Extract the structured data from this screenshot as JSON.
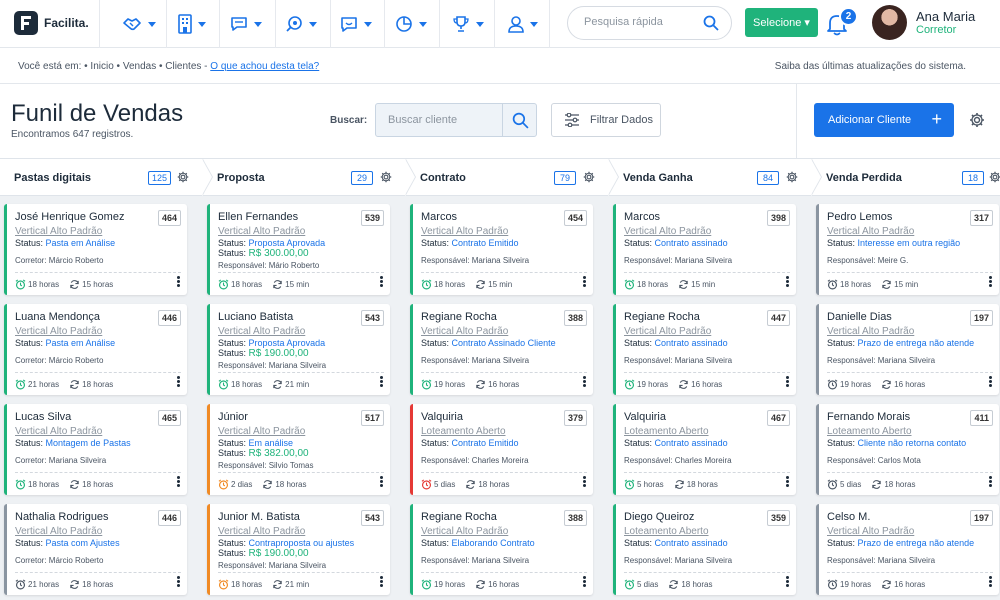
{
  "brand": {
    "name": "Facilita."
  },
  "topbar": {
    "search_placeholder": "Pesquisa rápida",
    "select_label": "Selecione ▾",
    "notifications": "2",
    "user_name": "Ana Maria",
    "user_role": "Corretor"
  },
  "breadcrumb": {
    "prefix": "Você está em:  • Inicio  • Vendas  • Clientes - ",
    "link": "O que achou desta tela?",
    "updates": "Saiba das últimas atualizações do sistema."
  },
  "header": {
    "title": "Funil de Vendas",
    "subtitle": "Encontramos 647 registros.",
    "search_label": "Buscar:",
    "search_placeholder": "Buscar cliente",
    "filter_label": "Filtrar Dados",
    "add_label": "Adicionar Cliente",
    "add_plus": "+"
  },
  "columns": [
    {
      "title": "Pastas digitais",
      "count": "125",
      "cards": [
        {
          "name": "José Henrique Gomez",
          "num": "464",
          "cat": "Vertical Alto Padrão",
          "status_label": "Status:",
          "status": "Pasta em Análise",
          "value_label": "",
          "value": "",
          "resp": "Corretor: Márcio Roberto",
          "t1": "18 horas",
          "t2": "15 horas",
          "color": "green"
        },
        {
          "name": "Luana Mendonça",
          "num": "446",
          "cat": "Vertical Alto Padrão",
          "status_label": "Status:",
          "status": "Pasta em Análise",
          "value_label": "",
          "value": "",
          "resp": "Corretor: Márcio Roberto",
          "t1": "21 horas",
          "t2": "18 horas",
          "color": "green"
        },
        {
          "name": "Lucas Silva",
          "num": "465",
          "cat": "Vertical Alto Padrão",
          "status_label": "Status:",
          "status": "Montagem de Pastas",
          "value_label": "",
          "value": "",
          "resp": "Corretor: Mariana Silveira",
          "t1": "18 horas",
          "t2": "18 horas",
          "color": "green"
        },
        {
          "name": "Nathalia Rodrigues",
          "num": "446",
          "cat": "Vertical Alto Padrão",
          "status_label": "Status:",
          "status": "Pasta com Ajustes",
          "value_label": "",
          "value": "",
          "resp": "Corretor: Márcio Roberto",
          "t1": "21 horas",
          "t2": "18 horas",
          "color": "gray"
        }
      ]
    },
    {
      "title": "Proposta",
      "count": "29",
      "cards": [
        {
          "name": "Ellen Fernandes",
          "num": "539",
          "cat": "Vertical Alto Padrão",
          "status_label": "Status:",
          "status": "Proposta Aprovada",
          "value_label": "Status:",
          "value": "R$ 300.00,00",
          "resp": "Responsável: Mário Roberto",
          "t1": "18 horas",
          "t2": "15 min",
          "color": "green"
        },
        {
          "name": "Luciano Batista",
          "num": "543",
          "cat": "Vertical Alto Padrão",
          "status_label": "Status:",
          "status": "Proposta Aprovada",
          "value_label": "Status:",
          "value": "R$ 190.00,00",
          "resp": "Responsável: Mariana Silveira",
          "t1": "18 horas",
          "t2": "21 min",
          "color": "green"
        },
        {
          "name": "Júnior",
          "num": "517",
          "cat": "Vertical Alto Padrão",
          "status_label": "Status:",
          "status": "Em análise",
          "value_label": "Status:",
          "value": "R$ 382.00,00",
          "resp": "Responsável: Silvio Tomas",
          "t1": "2 dias",
          "t2": "18 horas",
          "color": "orange"
        },
        {
          "name": "Junior M. Batista",
          "num": "543",
          "cat": "Vertical Alto Padrão",
          "status_label": "Status:",
          "status": "Contraproposta ou ajustes",
          "value_label": "Status:",
          "value": "R$ 190.00,00",
          "resp": "Responsável: Mariana Silveira",
          "t1": "18 horas",
          "t2": "21 min",
          "color": "orange"
        }
      ]
    },
    {
      "title": "Contrato",
      "count": "79",
      "cards": [
        {
          "name": "Marcos",
          "num": "454",
          "cat": "Vertical Alto Padrão",
          "status_label": "Status:",
          "status": "Contrato Emitido",
          "value_label": "",
          "value": "",
          "resp": "Responsável: Mariana Silveira",
          "t1": "18 horas",
          "t2": "15 min",
          "color": "green"
        },
        {
          "name": "Regiane Rocha",
          "num": "388",
          "cat": "Vertical Alto Padrão",
          "status_label": "Status:",
          "status": "Contrato Assinado Cliente",
          "value_label": "",
          "value": "",
          "resp": "Responsável: Mariana Silveira",
          "t1": "19 horas",
          "t2": "16 horas",
          "color": "green"
        },
        {
          "name": "Valquiria",
          "num": "379",
          "cat": "Loteamento Aberto",
          "status_label": "Status:",
          "status": "Contrato Emitido",
          "value_label": "",
          "value": "",
          "resp": "Responsável: Charles Moreira",
          "t1": "5 dias",
          "t2": "18 horas",
          "color": "red"
        },
        {
          "name": "Regiane Rocha",
          "num": "388",
          "cat": "Vertical Alto Padrão",
          "status_label": "Status:",
          "status": "Elaborando Contrato",
          "value_label": "",
          "value": "",
          "resp": "Responsável: Mariana Silveira",
          "t1": "19 horas",
          "t2": "16 horas",
          "color": "green"
        }
      ]
    },
    {
      "title": "Venda Ganha",
      "count": "84",
      "cards": [
        {
          "name": "Marcos",
          "num": "398",
          "cat": "Vertical Alto Padrão",
          "status_label": "Status:",
          "status": "Contrato assinado",
          "value_label": "",
          "value": "",
          "resp": "Responsável: Mariana Silveira",
          "t1": "18 horas",
          "t2": "15 min",
          "color": "green"
        },
        {
          "name": "Regiane Rocha",
          "num": "447",
          "cat": "Vertical Alto Padrão",
          "status_label": "Status:",
          "status": "Contrato assinado",
          "value_label": "",
          "value": "",
          "resp": "Responsável: Mariana Silveira",
          "t1": "19 horas",
          "t2": "16 horas",
          "color": "green"
        },
        {
          "name": "Valquiria",
          "num": "467",
          "cat": "Loteamento Aberto",
          "status_label": "Status:",
          "status": "Contrato assinado",
          "value_label": "",
          "value": "",
          "resp": "Responsável: Charles Moreira",
          "t1": "5 horas",
          "t2": "18 horas",
          "color": "green"
        },
        {
          "name": "Diego Queiroz",
          "num": "359",
          "cat": "Loteamento Aberto",
          "status_label": "Status:",
          "status": "Contrato assinado",
          "value_label": "",
          "value": "",
          "resp": "Responsável: Mariana Silveira",
          "t1": "5 dias",
          "t2": "18 horas",
          "color": "green"
        }
      ]
    },
    {
      "title": "Venda Perdida",
      "count": "18",
      "cards": [
        {
          "name": "Pedro Lemos",
          "num": "317",
          "cat": "Vertical Alto Padrão",
          "status_label": "Status:",
          "status": "Interesse em outra região",
          "value_label": "",
          "value": "",
          "resp": "Responsável: Meire G.",
          "t1": "18 horas",
          "t2": "15 min",
          "color": "gray"
        },
        {
          "name": "Danielle Dias",
          "num": "197",
          "cat": "Vertical Alto Padrão",
          "status_label": "Status:",
          "status": "Prazo de entrega não atende",
          "value_label": "",
          "value": "",
          "resp": "Responsável: Mariana Silveira",
          "t1": "19 horas",
          "t2": "16 horas",
          "color": "gray"
        },
        {
          "name": "Fernando Morais",
          "num": "411",
          "cat": "Loteamento Aberto",
          "status_label": "Status:",
          "status": "Cliente não retorna contato",
          "value_label": "",
          "value": "",
          "resp": "Responsável: Carlos Mota",
          "t1": "5 dias",
          "t2": "18 horas",
          "color": "gray"
        },
        {
          "name": "Celso M.",
          "num": "197",
          "cat": "Vertical Alto Padrão",
          "status_label": "Status:",
          "status": "Prazo de entrega não atende",
          "value_label": "",
          "value": "",
          "resp": "Responsável: Mariana Silveira",
          "t1": "19 horas",
          "t2": "16 horas",
          "color": "gray"
        }
      ]
    }
  ],
  "colors": {
    "accent": "#1a73e8",
    "success": "#1fb37b",
    "warning": "#f08a24",
    "danger": "#e53935",
    "neutral": "#8a95a1"
  },
  "icons": [
    "logo-icon",
    "handshake-icon",
    "building-icon",
    "chat-icon",
    "support-icon",
    "smiley-icon",
    "pie-chart-icon",
    "trophy-icon",
    "user-icon",
    "search-icon",
    "bell-icon",
    "filter-icon",
    "gear-icon",
    "alarm-icon",
    "refresh-icon",
    "more-icon"
  ]
}
